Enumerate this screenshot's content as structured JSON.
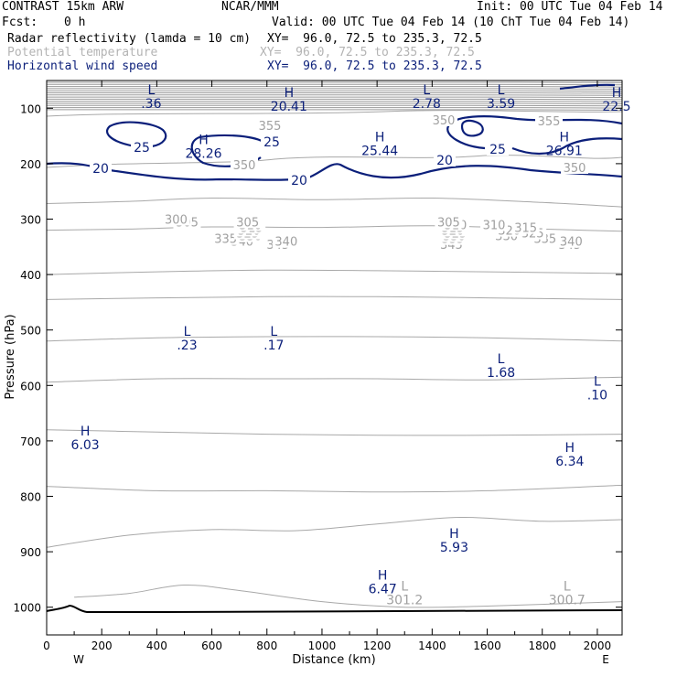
{
  "header": {
    "model": "CONTRAST 15km ARW",
    "org": "NCAR/MMM",
    "init": "Init: 00 UTC Tue 04 Feb 14",
    "fcst_label": "Fcst:",
    "fcst_value": "0 h",
    "valid": "Valid: 00 UTC Tue 04 Feb 14 (10 ChT Tue 04 Feb 14)",
    "fields": [
      {
        "name": "Radar reflectivity (lamda = 10 cm)",
        "xy": "XY=  96.0, 72.5 to 235.3, 72.5"
      },
      {
        "name": "Potential temperature",
        "xy": "XY=  96.0, 72.5 to 235.3, 72.5"
      },
      {
        "name": "Horizontal wind speed",
        "xy": "XY=  96.0, 72.5 to 235.3, 72.5"
      }
    ]
  },
  "colors": {
    "wind": "#0b1f7a",
    "theta": "#a8a8a8",
    "text": "#000000",
    "dim_header": "#b4b4b4"
  },
  "chart_data": {
    "type": "cross-section contour",
    "xlabel": "Distance (km)",
    "ylabel": "Pressure (hPa)",
    "xlim": [
      0,
      2090
    ],
    "ylim": [
      1050,
      50
    ],
    "x_ticks": [
      0,
      200,
      400,
      600,
      800,
      1000,
      1200,
      1400,
      1600,
      1800,
      2000
    ],
    "y_ticks": [
      100,
      200,
      300,
      400,
      500,
      600,
      700,
      800,
      900,
      1000
    ],
    "x_end_labels": {
      "left": "W",
      "right": "E"
    },
    "theta_contours": [
      {
        "value": 345,
        "line": [
          [
            0,
            272
          ],
          [
            300,
            268
          ],
          [
            600,
            262
          ],
          [
            1000,
            265
          ],
          [
            1400,
            262
          ],
          [
            1800,
            270
          ],
          [
            2090,
            278
          ]
        ],
        "labels": [
          [
            840,
            345
          ],
          [
            1470,
            345
          ],
          [
            1900,
            345
          ]
        ]
      },
      {
        "value": 340,
        "line": [
          [
            0,
            320
          ],
          [
            300,
            318
          ],
          [
            600,
            314
          ],
          [
            1000,
            315
          ],
          [
            1400,
            312
          ],
          [
            1800,
            318
          ],
          [
            2090,
            322
          ]
        ],
        "labels": [
          [
            710,
            340
          ],
          [
            870,
            340
          ],
          [
            1905,
            340
          ]
        ]
      },
      {
        "value": 335,
        "line": [
          [
            0,
            400
          ],
          [
            400,
            395
          ],
          [
            800,
            392
          ],
          [
            1200,
            393
          ],
          [
            1600,
            395
          ],
          [
            2090,
            398
          ]
        ],
        "labels": [
          [
            650,
            335
          ],
          [
            1475,
            335
          ],
          [
            1810,
            335
          ]
        ]
      },
      {
        "value": 330,
        "line": [
          [
            0,
            445
          ],
          [
            400,
            442
          ],
          [
            800,
            440
          ],
          [
            1200,
            440
          ],
          [
            1600,
            442
          ],
          [
            2090,
            445
          ]
        ],
        "labels": [
          [
            740,
            330
          ],
          [
            1480,
            330
          ],
          [
            1670,
            330
          ]
        ]
      },
      {
        "value": 325,
        "line": [
          [
            0,
            520
          ],
          [
            400,
            514
          ],
          [
            800,
            512
          ],
          [
            1200,
            512
          ],
          [
            1600,
            514
          ],
          [
            2090,
            520
          ]
        ],
        "labels": [
          [
            730,
            325
          ],
          [
            1485,
            325
          ],
          [
            1765,
            325
          ]
        ]
      },
      {
        "value": 320,
        "line": [
          [
            0,
            594
          ],
          [
            400,
            588
          ],
          [
            800,
            588
          ],
          [
            1200,
            588
          ],
          [
            1600,
            590
          ],
          [
            2090,
            585
          ]
        ],
        "labels": [
          [
            735,
            320
          ],
          [
            1475,
            320
          ],
          [
            1680,
            320
          ]
        ]
      },
      {
        "value": 315,
        "line": [
          [
            0,
            680
          ],
          [
            400,
            684
          ],
          [
            800,
            688
          ],
          [
            1200,
            690
          ],
          [
            1600,
            690
          ],
          [
            2090,
            688
          ]
        ],
        "labels": [
          [
            745,
            315
          ],
          [
            1475,
            315
          ],
          [
            1740,
            315
          ]
        ]
      },
      {
        "value": 310,
        "line": [
          [
            0,
            782
          ],
          [
            400,
            790
          ],
          [
            800,
            790
          ],
          [
            1200,
            792
          ],
          [
            1600,
            790
          ],
          [
            2090,
            780
          ]
        ],
        "labels": [
          [
            740,
            310
          ],
          [
            1485,
            310
          ],
          [
            1625,
            310
          ]
        ]
      },
      {
        "value": 305,
        "line": [
          [
            0,
            892
          ],
          [
            300,
            870
          ],
          [
            600,
            860
          ],
          [
            900,
            862
          ],
          [
            1200,
            850
          ],
          [
            1500,
            838
          ],
          [
            1800,
            845
          ],
          [
            2090,
            842
          ]
        ],
        "labels": [
          [
            510,
            305
          ],
          [
            730,
            305
          ],
          [
            1460,
            305
          ]
        ]
      },
      {
        "value": 300,
        "line": [
          [
            100,
            982
          ],
          [
            300,
            975
          ],
          [
            500,
            960
          ],
          [
            700,
            970
          ],
          [
            1000,
            990
          ],
          [
            1300,
            1000
          ],
          [
            1600,
            998
          ],
          [
            2090,
            990
          ]
        ],
        "labels": [
          [
            470,
            300
          ]
        ]
      }
    ],
    "wind_contours": [
      20,
      25
    ],
    "wind_extrema": [
      {
        "type": "L",
        "value": ".36",
        "x": 380,
        "p": 75
      },
      {
        "type": "H",
        "value": "20.41",
        "x": 880,
        "p": 80
      },
      {
        "type": "L",
        "value": "2.78",
        "x": 1380,
        "p": 75
      },
      {
        "type": "L",
        "value": "3.59",
        "x": 1650,
        "p": 75
      },
      {
        "type": "H",
        "value": "22.5",
        "x": 2070,
        "p": 80
      },
      {
        "type": "H",
        "value": "28.26",
        "x": 570,
        "p": 165
      },
      {
        "type": "H",
        "value": "25.44",
        "x": 1210,
        "p": 160
      },
      {
        "type": "H",
        "value": "26.91",
        "x": 1880,
        "p": 160
      },
      {
        "type": "L",
        "value": ".23",
        "x": 510,
        "p": 510
      },
      {
        "type": "L",
        "value": ".17",
        "x": 825,
        "p": 510
      },
      {
        "type": "L",
        "value": "1.68",
        "x": 1650,
        "p": 560
      },
      {
        "type": "L",
        "value": ".10",
        "x": 2000,
        "p": 600
      },
      {
        "type": "H",
        "value": "6.03",
        "x": 140,
        "p": 690
      },
      {
        "type": "H",
        "value": "6.34",
        "x": 1900,
        "p": 720
      },
      {
        "type": "H",
        "value": "5.93",
        "x": 1480,
        "p": 875
      },
      {
        "type": "H",
        "value": "6.47",
        "x": 1220,
        "p": 950
      }
    ],
    "theta_extrema": [
      {
        "type": "L",
        "value": "301.2",
        "x": 1300,
        "p": 1000
      },
      {
        "type": "L",
        "value": "300.7",
        "x": 1890,
        "p": 1000
      }
    ]
  }
}
